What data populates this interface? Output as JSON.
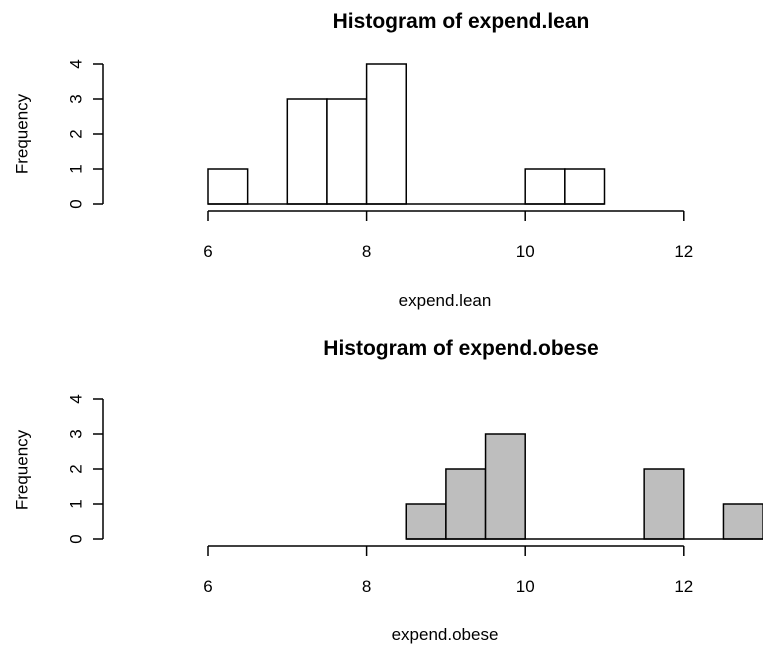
{
  "chart_data": [
    {
      "type": "bar",
      "title": "Histogram of expend.lean",
      "xlabel": "expend.lean",
      "ylabel": "Frequency",
      "bar_color": "#ffffff",
      "xlim": [
        6,
        13
      ],
      "ylim": [
        0,
        4
      ],
      "xticks": [
        "6",
        "8",
        "10",
        "12"
      ],
      "yticks": [
        "0",
        "1",
        "2",
        "3",
        "4"
      ],
      "bins": [
        {
          "start": 6.0,
          "end": 6.5,
          "count": 1
        },
        {
          "start": 6.5,
          "end": 7.0,
          "count": 0
        },
        {
          "start": 7.0,
          "end": 7.5,
          "count": 3
        },
        {
          "start": 7.5,
          "end": 8.0,
          "count": 3
        },
        {
          "start": 8.0,
          "end": 8.5,
          "count": 4
        },
        {
          "start": 8.5,
          "end": 9.0,
          "count": 0
        },
        {
          "start": 9.0,
          "end": 9.5,
          "count": 0
        },
        {
          "start": 9.5,
          "end": 10.0,
          "count": 0
        },
        {
          "start": 10.0,
          "end": 10.5,
          "count": 1
        },
        {
          "start": 10.5,
          "end": 11.0,
          "count": 1
        }
      ]
    },
    {
      "type": "bar",
      "title": "Histogram of expend.obese",
      "xlabel": "expend.obese",
      "ylabel": "Frequency",
      "bar_color": "#bebebe",
      "xlim": [
        6,
        13
      ],
      "ylim": [
        0,
        4
      ],
      "xticks": [
        "6",
        "8",
        "10",
        "12"
      ],
      "yticks": [
        "0",
        "1",
        "2",
        "3",
        "4"
      ],
      "bins": [
        {
          "start": 8.5,
          "end": 9.0,
          "count": 1
        },
        {
          "start": 9.0,
          "end": 9.5,
          "count": 2
        },
        {
          "start": 9.5,
          "end": 10.0,
          "count": 3
        },
        {
          "start": 10.0,
          "end": 10.5,
          "count": 0
        },
        {
          "start": 10.5,
          "end": 11.0,
          "count": 0
        },
        {
          "start": 11.0,
          "end": 11.5,
          "count": 0
        },
        {
          "start": 11.5,
          "end": 12.0,
          "count": 2
        },
        {
          "start": 12.0,
          "end": 12.5,
          "count": 0
        },
        {
          "start": 12.5,
          "end": 13.0,
          "count": 1
        }
      ]
    }
  ]
}
